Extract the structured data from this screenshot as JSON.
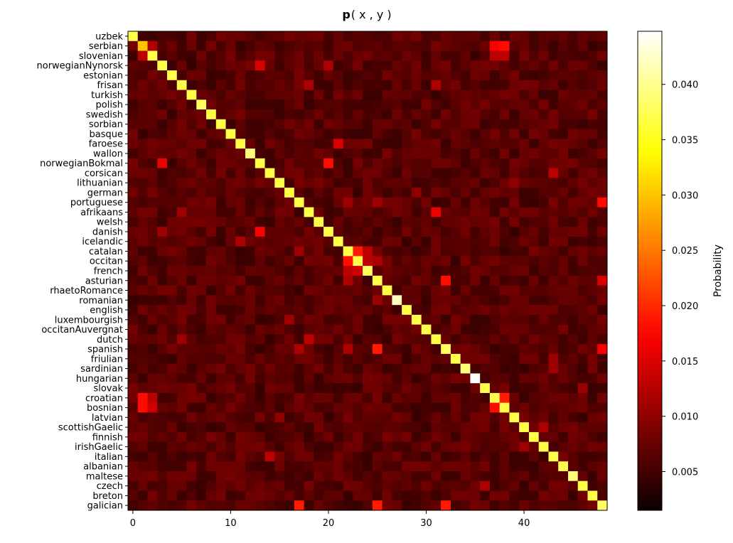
{
  "chart_data": {
    "type": "heatmap",
    "title_bold": "p",
    "title_rest": "( x , y )",
    "colorbar_label": "Probability",
    "colormap": "hot",
    "vmin": 0.0015,
    "vmax": 0.0448,
    "x_ticks": [
      0,
      10,
      20,
      30,
      40
    ],
    "colorbar_ticks": [
      0.005,
      0.01,
      0.015,
      0.02,
      0.025,
      0.03,
      0.035,
      0.04
    ],
    "colorbar_tick_labels": [
      "0.005",
      "0.010",
      "0.015",
      "0.020",
      "0.025",
      "0.030",
      "0.035",
      "0.040"
    ],
    "languages": [
      "uzbek",
      "serbian",
      "slovenian",
      "norwegianNynorsk",
      "estonian",
      "frisan",
      "turkish",
      "polish",
      "swedish",
      "sorbian",
      "basque",
      "faroese",
      "wallon",
      "norwegianBokmal",
      "corsican",
      "lithuanian",
      "german",
      "portuguese",
      "afrikaans",
      "welsh",
      "danish",
      "icelandic",
      "catalan",
      "occitan",
      "french",
      "asturian",
      "rhaetoRomance",
      "romanian",
      "english",
      "luxembourgish",
      "occitanAuvergnat",
      "dutch",
      "spanish",
      "friulian",
      "sardinian",
      "hungarian",
      "slovak",
      "croatian",
      "bosnian",
      "latvian",
      "scottishGaelic",
      "finnish",
      "irishGaelic",
      "italian",
      "albanian",
      "maltese",
      "czech",
      "breton",
      "galician"
    ],
    "diagonal": [
      0.037,
      0.03,
      0.037,
      0.037,
      0.037,
      0.037,
      0.037,
      0.038,
      0.037,
      0.037,
      0.037,
      0.037,
      0.039,
      0.037,
      0.037,
      0.037,
      0.037,
      0.037,
      0.037,
      0.037,
      0.037,
      0.037,
      0.037,
      0.037,
      0.038,
      0.037,
      0.037,
      0.042,
      0.037,
      0.037,
      0.037,
      0.037,
      0.038,
      0.037,
      0.039,
      0.045,
      0.037,
      0.037,
      0.037,
      0.037,
      0.037,
      0.037,
      0.037,
      0.037,
      0.037,
      0.039,
      0.037,
      0.037,
      0.038
    ],
    "background_off_diagonal": 0.0065,
    "highlights": [
      {
        "row": "serbian",
        "col": 2,
        "value": 0.012
      },
      {
        "row": "slovenian",
        "col": 1,
        "value": 0.013
      },
      {
        "row": "serbian",
        "col": 37,
        "value": 0.017
      },
      {
        "row": "serbian",
        "col": 38,
        "value": 0.018
      },
      {
        "row": "slovenian",
        "col": 37,
        "value": 0.013
      },
      {
        "row": "slovenian",
        "col": 38,
        "value": 0.013
      },
      {
        "row": "norwegianNynorsk",
        "col": 13,
        "value": 0.015
      },
      {
        "row": "norwegianNynorsk",
        "col": 20,
        "value": 0.012
      },
      {
        "row": "norwegianBokmal",
        "col": 3,
        "value": 0.016
      },
      {
        "row": "norwegianBokmal",
        "col": 20,
        "value": 0.018
      },
      {
        "row": "danish",
        "col": 13,
        "value": 0.017
      },
      {
        "row": "danish",
        "col": 3,
        "value": 0.011
      },
      {
        "row": "faroese",
        "col": 21,
        "value": 0.015
      },
      {
        "row": "icelandic",
        "col": 11,
        "value": 0.012
      },
      {
        "row": "frisan",
        "col": 18,
        "value": 0.012
      },
      {
        "row": "frisan",
        "col": 31,
        "value": 0.012
      },
      {
        "row": "afrikaans",
        "col": 31,
        "value": 0.016
      },
      {
        "row": "afrikaans",
        "col": 5,
        "value": 0.011
      },
      {
        "row": "dutch",
        "col": 18,
        "value": 0.013
      },
      {
        "row": "dutch",
        "col": 5,
        "value": 0.011
      },
      {
        "row": "portuguese",
        "col": 48,
        "value": 0.018
      },
      {
        "row": "portuguese",
        "col": 22,
        "value": 0.011
      },
      {
        "row": "portuguese",
        "col": 25,
        "value": 0.011
      },
      {
        "row": "catalan",
        "col": 23,
        "value": 0.019
      },
      {
        "row": "catalan",
        "col": 24,
        "value": 0.013
      },
      {
        "row": "catalan",
        "col": 17,
        "value": 0.011
      },
      {
        "row": "occitan",
        "col": 22,
        "value": 0.018
      },
      {
        "row": "occitan",
        "col": 24,
        "value": 0.013
      },
      {
        "row": "occitan",
        "col": 25,
        "value": 0.012
      },
      {
        "row": "french",
        "col": 22,
        "value": 0.013
      },
      {
        "row": "french",
        "col": 23,
        "value": 0.014
      },
      {
        "row": "asturian",
        "col": 32,
        "value": 0.018
      },
      {
        "row": "asturian",
        "col": 48,
        "value": 0.015
      },
      {
        "row": "asturian",
        "col": 22,
        "value": 0.012
      },
      {
        "row": "spanish",
        "col": 25,
        "value": 0.019
      },
      {
        "row": "spanish",
        "col": 48,
        "value": 0.017
      },
      {
        "row": "spanish",
        "col": 17,
        "value": 0.012
      },
      {
        "row": "spanish",
        "col": 22,
        "value": 0.012
      },
      {
        "row": "galician",
        "col": 17,
        "value": 0.019
      },
      {
        "row": "galician",
        "col": 25,
        "value": 0.019
      },
      {
        "row": "galician",
        "col": 32,
        "value": 0.019
      },
      {
        "row": "croatian",
        "col": 1,
        "value": 0.018
      },
      {
        "row": "croatian",
        "col": 2,
        "value": 0.013
      },
      {
        "row": "croatian",
        "col": 38,
        "value": 0.019
      },
      {
        "row": "bosnian",
        "col": 1,
        "value": 0.018
      },
      {
        "row": "bosnian",
        "col": 2,
        "value": 0.014
      },
      {
        "row": "bosnian",
        "col": 37,
        "value": 0.018
      },
      {
        "row": "corsican",
        "col": 43,
        "value": 0.013
      },
      {
        "row": "italian",
        "col": 14,
        "value": 0.013
      },
      {
        "row": "scottishGaelic",
        "col": 42,
        "value": 0.012
      },
      {
        "row": "irishGaelic",
        "col": 40,
        "value": 0.011
      },
      {
        "row": "czech",
        "col": 36,
        "value": 0.012
      },
      {
        "row": "slovak",
        "col": 46,
        "value": 0.011
      },
      {
        "row": "latvian",
        "col": 15,
        "value": 0.01
      },
      {
        "row": "luxembourgish",
        "col": 16,
        "value": 0.011
      },
      {
        "row": "german",
        "col": 29,
        "value": 0.01
      },
      {
        "row": "romanian",
        "col": 25,
        "value": 0.011
      },
      {
        "row": "sardinian",
        "col": 43,
        "value": 0.011
      },
      {
        "row": "friulian",
        "col": 43,
        "value": 0.011
      },
      {
        "row": "lithuanian",
        "col": 39,
        "value": 0.01
      }
    ]
  }
}
